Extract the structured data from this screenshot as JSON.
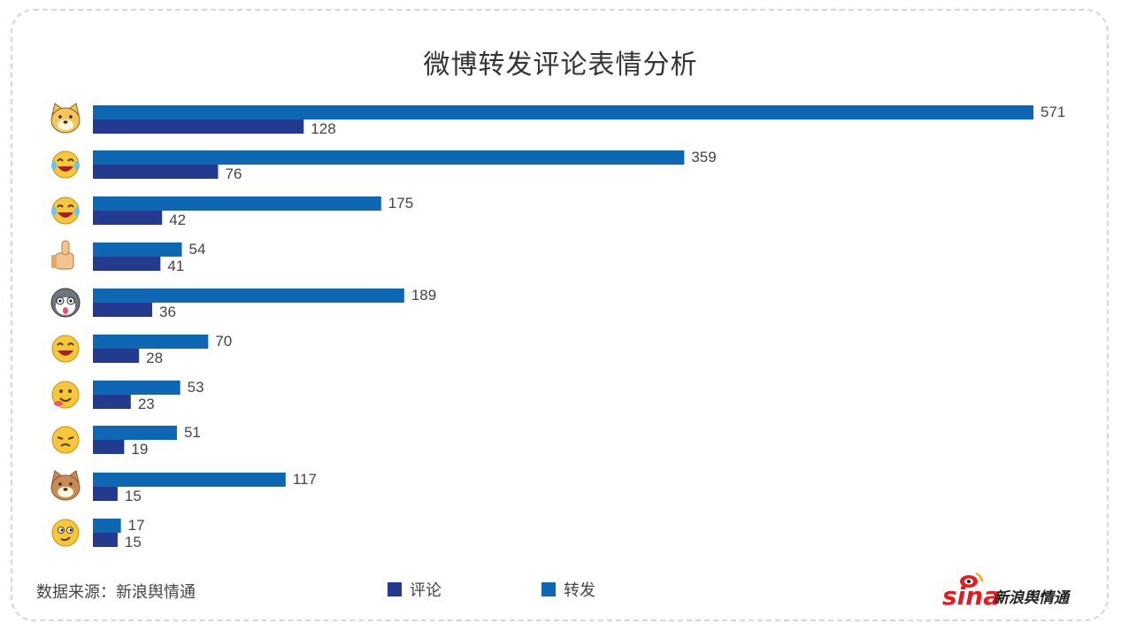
{
  "title": "微博转发评论表情分析",
  "source": "数据来源：新浪舆情通",
  "logo_text": "sina新浪舆情通",
  "colors": {
    "comment": "#233a8f",
    "repost": "#0f66b2"
  },
  "legend": [
    {
      "key": "comment",
      "label": "评论"
    },
    {
      "key": "repost",
      "label": "转发"
    }
  ],
  "chart_data": {
    "type": "bar",
    "orientation": "horizontal",
    "categories": [
      "doge-emoji",
      "rolling-laugh-emoji",
      "tears-of-joy-emoji",
      "thumbs-up-emoji",
      "husky-emoji",
      "big-laugh-emoji",
      "drooling-emoji",
      "sulking-emoji",
      "shiba-emoji",
      "sly-smile-emoji"
    ],
    "series": [
      {
        "name": "转发",
        "key": "repost",
        "values": [
          571,
          359,
          175,
          54,
          189,
          70,
          53,
          51,
          117,
          17
        ]
      },
      {
        "name": "评论",
        "key": "comment",
        "values": [
          128,
          76,
          42,
          41,
          36,
          28,
          23,
          19,
          15,
          15
        ]
      }
    ],
    "xlim": [
      0,
      571
    ],
    "grid": false,
    "legend_position": "bottom"
  }
}
